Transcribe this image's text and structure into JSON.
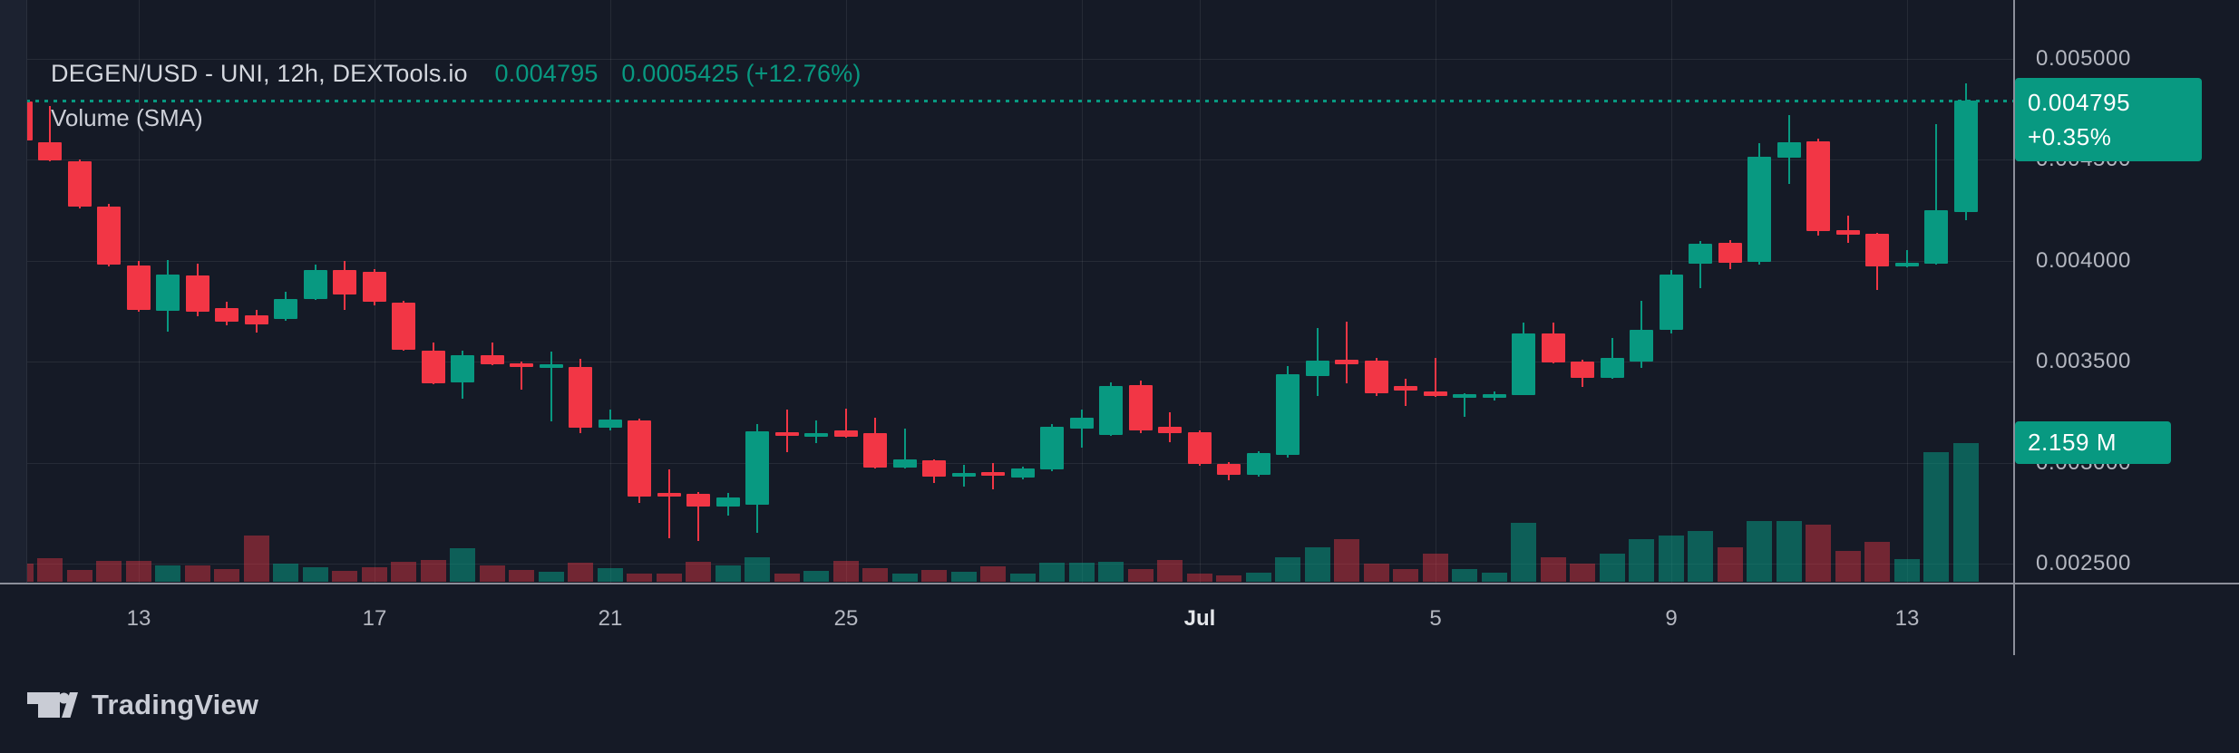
{
  "header": {
    "symbol_title": "DEGEN/USD - UNI, 12h, DEXTools.io",
    "last_price": "0.004795",
    "change_text": "0.0005425 (+12.76%)",
    "indicator_label": "Volume (SMA)"
  },
  "price_axis": {
    "labels": [
      {
        "text": "0.005000",
        "price": 0.005
      },
      {
        "text": "0.004500",
        "price": 0.0045
      },
      {
        "text": "0.004000",
        "price": 0.004
      },
      {
        "text": "0.003500",
        "price": 0.0035
      },
      {
        "text": "0.003000",
        "price": 0.003
      },
      {
        "text": "0.002500",
        "price": 0.0025
      }
    ],
    "price_badge": {
      "value": "0.004795",
      "change_pct": "+0.35%"
    },
    "volume_badge": "2.159 M"
  },
  "time_axis": {
    "labels": [
      {
        "text": "13",
        "index": 4,
        "month": false
      },
      {
        "text": "17",
        "index": 12,
        "month": false
      },
      {
        "text": "21",
        "index": 20,
        "month": false
      },
      {
        "text": "25",
        "index": 28,
        "month": false
      },
      {
        "text": "Jul",
        "index": 40,
        "month": true
      },
      {
        "text": "5",
        "index": 48,
        "month": false
      },
      {
        "text": "9",
        "index": 56,
        "month": false
      },
      {
        "text": "13",
        "index": 64,
        "month": false
      }
    ],
    "extra_gridline_indices": [
      36
    ]
  },
  "footer": {
    "brand": "TradingView"
  },
  "colors": {
    "background": "#151a26",
    "up": "#089981",
    "down": "#f23645",
    "volume_up": "rgba(8,153,129,0.55)",
    "volume_down": "rgba(242,54,69,0.42)",
    "accent": "#089981",
    "axis_text": "#b4b7c0",
    "grid": "rgba(255,255,255,0.075)"
  },
  "chart_data": {
    "type": "candlestick",
    "title": "DEGEN/USD - UNI, 12h, DEXTools.io",
    "symbol": "DEGEN/USD",
    "exchange": "UNI",
    "interval": "12h",
    "source": "DEXTools.io",
    "current_price": 0.004795,
    "current_change_pct": 0.35,
    "session_change": "0.0005425 (+12.76%)",
    "current_volume_millions": 2.159,
    "y_axis": {
      "min": 0.00241,
      "max": 0.00505,
      "tick_step": 0.0005,
      "grid": true,
      "side": "right"
    },
    "x_axis": {
      "start": "Jun 11 00:00",
      "end": "Jul 14 00:00",
      "candles_per_day": 2
    },
    "volume_indicator": "Volume (SMA)",
    "candles": [
      {
        "t": "06-11 00",
        "o": 0.004789,
        "h": 0.0048,
        "l": 0.004587,
        "c": 0.004596,
        "v": 0.28
      },
      {
        "t": "06-11 12",
        "o": 0.004587,
        "h": 0.004767,
        "l": 0.004493,
        "c": 0.004497,
        "v": 0.37
      },
      {
        "t": "06-12 00",
        "o": 0.004493,
        "h": 0.004502,
        "l": 0.004259,
        "c": 0.004268,
        "v": 0.18
      },
      {
        "t": "06-12 12",
        "o": 0.004268,
        "h": 0.004282,
        "l": 0.003972,
        "c": 0.003981,
        "v": 0.32
      },
      {
        "t": "06-13 00",
        "o": 0.003977,
        "h": 0.004,
        "l": 0.003748,
        "c": 0.003757,
        "v": 0.32
      },
      {
        "t": "06-13 12",
        "o": 0.003752,
        "h": 0.004005,
        "l": 0.00365,
        "c": 0.003932,
        "v": 0.26
      },
      {
        "t": "06-14 00",
        "o": 0.003928,
        "h": 0.003986,
        "l": 0.003726,
        "c": 0.003748,
        "v": 0.26
      },
      {
        "t": "06-14 12",
        "o": 0.003765,
        "h": 0.003797,
        "l": 0.003681,
        "c": 0.003699,
        "v": 0.2
      },
      {
        "t": "06-15 00",
        "o": 0.00373,
        "h": 0.003757,
        "l": 0.003645,
        "c": 0.003685,
        "v": 0.72
      },
      {
        "t": "06-15 12",
        "o": 0.003712,
        "h": 0.003847,
        "l": 0.003703,
        "c": 0.00381,
        "v": 0.28
      },
      {
        "t": "06-16 00",
        "o": 0.00381,
        "h": 0.003981,
        "l": 0.003805,
        "c": 0.003954,
        "v": 0.23
      },
      {
        "t": "06-16 12",
        "o": 0.003954,
        "h": 0.003999,
        "l": 0.003757,
        "c": 0.003833,
        "v": 0.17
      },
      {
        "t": "06-17 00",
        "o": 0.003946,
        "h": 0.00396,
        "l": 0.00378,
        "c": 0.003798,
        "v": 0.23
      },
      {
        "t": "06-17 12",
        "o": 0.003794,
        "h": 0.003803,
        "l": 0.003555,
        "c": 0.00356,
        "v": 0.31
      },
      {
        "t": "06-18 00",
        "o": 0.003555,
        "h": 0.003594,
        "l": 0.003389,
        "c": 0.003393,
        "v": 0.34
      },
      {
        "t": "06-18 12",
        "o": 0.003398,
        "h": 0.003555,
        "l": 0.003317,
        "c": 0.003531,
        "v": 0.52
      },
      {
        "t": "06-19 00",
        "o": 0.003531,
        "h": 0.003594,
        "l": 0.003483,
        "c": 0.003487,
        "v": 0.26
      },
      {
        "t": "06-19 12",
        "o": 0.00349,
        "h": 0.003501,
        "l": 0.00336,
        "c": 0.003483,
        "v": 0.19
      },
      {
        "t": "06-20 00",
        "o": 0.003483,
        "h": 0.003549,
        "l": 0.003204,
        "c": 0.003487,
        "v": 0.16
      },
      {
        "t": "06-20 12",
        "o": 0.003474,
        "h": 0.003515,
        "l": 0.003146,
        "c": 0.003173,
        "v": 0.3
      },
      {
        "t": "06-21 00",
        "o": 0.003173,
        "h": 0.003263,
        "l": 0.00316,
        "c": 0.003213,
        "v": 0.21
      },
      {
        "t": "06-21 12",
        "o": 0.003209,
        "h": 0.003218,
        "l": 0.002801,
        "c": 0.00283,
        "v": 0.13
      },
      {
        "t": "06-22 00",
        "o": 0.002848,
        "h": 0.002967,
        "l": 0.002626,
        "c": 0.002843,
        "v": 0.13
      },
      {
        "t": "06-22 12",
        "o": 0.002846,
        "h": 0.002855,
        "l": 0.002613,
        "c": 0.002783,
        "v": 0.31
      },
      {
        "t": "06-23 00",
        "o": 0.002783,
        "h": 0.00285,
        "l": 0.00274,
        "c": 0.002828,
        "v": 0.26
      },
      {
        "t": "06-23 12",
        "o": 0.002792,
        "h": 0.003191,
        "l": 0.002653,
        "c": 0.003156,
        "v": 0.38
      },
      {
        "t": "06-24 00",
        "o": 0.00315,
        "h": 0.003263,
        "l": 0.003052,
        "c": 0.003143,
        "v": 0.13
      },
      {
        "t": "06-24 12",
        "o": 0.003143,
        "h": 0.00321,
        "l": 0.0031,
        "c": 0.003147,
        "v": 0.17
      },
      {
        "t": "06-25 00",
        "o": 0.00316,
        "h": 0.003267,
        "l": 0.003125,
        "c": 0.00313,
        "v": 0.32
      },
      {
        "t": "06-25 12",
        "o": 0.003147,
        "h": 0.003224,
        "l": 0.002971,
        "c": 0.002976,
        "v": 0.21
      },
      {
        "t": "06-26 00",
        "o": 0.002976,
        "h": 0.003169,
        "l": 0.002971,
        "c": 0.003016,
        "v": 0.12
      },
      {
        "t": "06-26 12",
        "o": 0.003012,
        "h": 0.003016,
        "l": 0.0029,
        "c": 0.002931,
        "v": 0.18
      },
      {
        "t": "06-27 00",
        "o": 0.00294,
        "h": 0.002989,
        "l": 0.002882,
        "c": 0.002948,
        "v": 0.16
      },
      {
        "t": "06-27 12",
        "o": 0.002953,
        "h": 0.002998,
        "l": 0.002868,
        "c": 0.002936,
        "v": 0.24
      },
      {
        "t": "06-28 00",
        "o": 0.002926,
        "h": 0.00298,
        "l": 0.002917,
        "c": 0.002971,
        "v": 0.13
      },
      {
        "t": "06-28 12",
        "o": 0.002967,
        "h": 0.003191,
        "l": 0.002958,
        "c": 0.003178,
        "v": 0.3
      },
      {
        "t": "06-29 00",
        "o": 0.003169,
        "h": 0.003263,
        "l": 0.003075,
        "c": 0.003224,
        "v": 0.3
      },
      {
        "t": "06-29 12",
        "o": 0.003138,
        "h": 0.003398,
        "l": 0.003134,
        "c": 0.00338,
        "v": 0.31
      },
      {
        "t": "06-30 00",
        "o": 0.003384,
        "h": 0.003407,
        "l": 0.003147,
        "c": 0.00316,
        "v": 0.2
      },
      {
        "t": "06-30 12",
        "o": 0.003178,
        "h": 0.00325,
        "l": 0.003102,
        "c": 0.003147,
        "v": 0.34
      },
      {
        "t": "07-01 00",
        "o": 0.003151,
        "h": 0.00316,
        "l": 0.002985,
        "c": 0.002994,
        "v": 0.13
      },
      {
        "t": "07-01 12",
        "o": 0.002994,
        "h": 0.003003,
        "l": 0.002912,
        "c": 0.00294,
        "v": 0.1
      },
      {
        "t": "07-02 00",
        "o": 0.00294,
        "h": 0.003058,
        "l": 0.002931,
        "c": 0.003049,
        "v": 0.14
      },
      {
        "t": "07-02 12",
        "o": 0.003038,
        "h": 0.003478,
        "l": 0.003025,
        "c": 0.003438,
        "v": 0.38
      },
      {
        "t": "07-03 00",
        "o": 0.003429,
        "h": 0.003668,
        "l": 0.00333,
        "c": 0.003506,
        "v": 0.54
      },
      {
        "t": "07-03 12",
        "o": 0.00351,
        "h": 0.003699,
        "l": 0.003393,
        "c": 0.003487,
        "v": 0.66
      },
      {
        "t": "07-04 00",
        "o": 0.003506,
        "h": 0.003519,
        "l": 0.00333,
        "c": 0.003344,
        "v": 0.28
      },
      {
        "t": "07-04 12",
        "o": 0.00338,
        "h": 0.003416,
        "l": 0.003281,
        "c": 0.003357,
        "v": 0.2
      },
      {
        "t": "07-05 00",
        "o": 0.003353,
        "h": 0.003519,
        "l": 0.003326,
        "c": 0.00333,
        "v": 0.44
      },
      {
        "t": "07-05 12",
        "o": 0.003332,
        "h": 0.003345,
        "l": 0.003227,
        "c": 0.003341,
        "v": 0.2
      },
      {
        "t": "07-06 00",
        "o": 0.00333,
        "h": 0.003353,
        "l": 0.003308,
        "c": 0.003339,
        "v": 0.14
      },
      {
        "t": "07-06 12",
        "o": 0.003335,
        "h": 0.003694,
        "l": 0.003335,
        "c": 0.00364,
        "v": 0.92
      },
      {
        "t": "07-07 00",
        "o": 0.003641,
        "h": 0.003694,
        "l": 0.003493,
        "c": 0.003497,
        "v": 0.38
      },
      {
        "t": "07-07 12",
        "o": 0.003503,
        "h": 0.00351,
        "l": 0.003376,
        "c": 0.003421,
        "v": 0.28
      },
      {
        "t": "07-08 00",
        "o": 0.003421,
        "h": 0.003618,
        "l": 0.003417,
        "c": 0.003519,
        "v": 0.44
      },
      {
        "t": "07-08 12",
        "o": 0.003503,
        "h": 0.003802,
        "l": 0.003471,
        "c": 0.00366,
        "v": 0.66
      },
      {
        "t": "07-09 00",
        "o": 0.00366,
        "h": 0.003954,
        "l": 0.003642,
        "c": 0.003932,
        "v": 0.72
      },
      {
        "t": "07-09 12",
        "o": 0.003986,
        "h": 0.004098,
        "l": 0.003865,
        "c": 0.004085,
        "v": 0.79
      },
      {
        "t": "07-10 00",
        "o": 0.004089,
        "h": 0.004103,
        "l": 0.003959,
        "c": 0.00399,
        "v": 0.54
      },
      {
        "t": "07-10 12",
        "o": 0.003995,
        "h": 0.004583,
        "l": 0.003981,
        "c": 0.004516,
        "v": 0.95
      },
      {
        "t": "07-11 00",
        "o": 0.004512,
        "h": 0.004722,
        "l": 0.004381,
        "c": 0.004587,
        "v": 0.95
      },
      {
        "t": "07-11 12",
        "o": 0.004592,
        "h": 0.004605,
        "l": 0.004125,
        "c": 0.004147,
        "v": 0.89
      },
      {
        "t": "07-12 00",
        "o": 0.004152,
        "h": 0.004224,
        "l": 0.004089,
        "c": 0.004129,
        "v": 0.48
      },
      {
        "t": "07-12 12",
        "o": 0.004134,
        "h": 0.004138,
        "l": 0.003856,
        "c": 0.003972,
        "v": 0.62
      },
      {
        "t": "07-13 00",
        "o": 0.003981,
        "h": 0.004053,
        "l": 0.003968,
        "c": 0.00399,
        "v": 0.35
      },
      {
        "t": "07-13 12",
        "o": 0.003986,
        "h": 0.004677,
        "l": 0.003981,
        "c": 0.004251,
        "v": 2.02
      },
      {
        "t": "07-14 00",
        "o": 0.004242,
        "h": 0.00488,
        "l": 0.004203,
        "c": 0.004795,
        "v": 2.159
      }
    ]
  }
}
